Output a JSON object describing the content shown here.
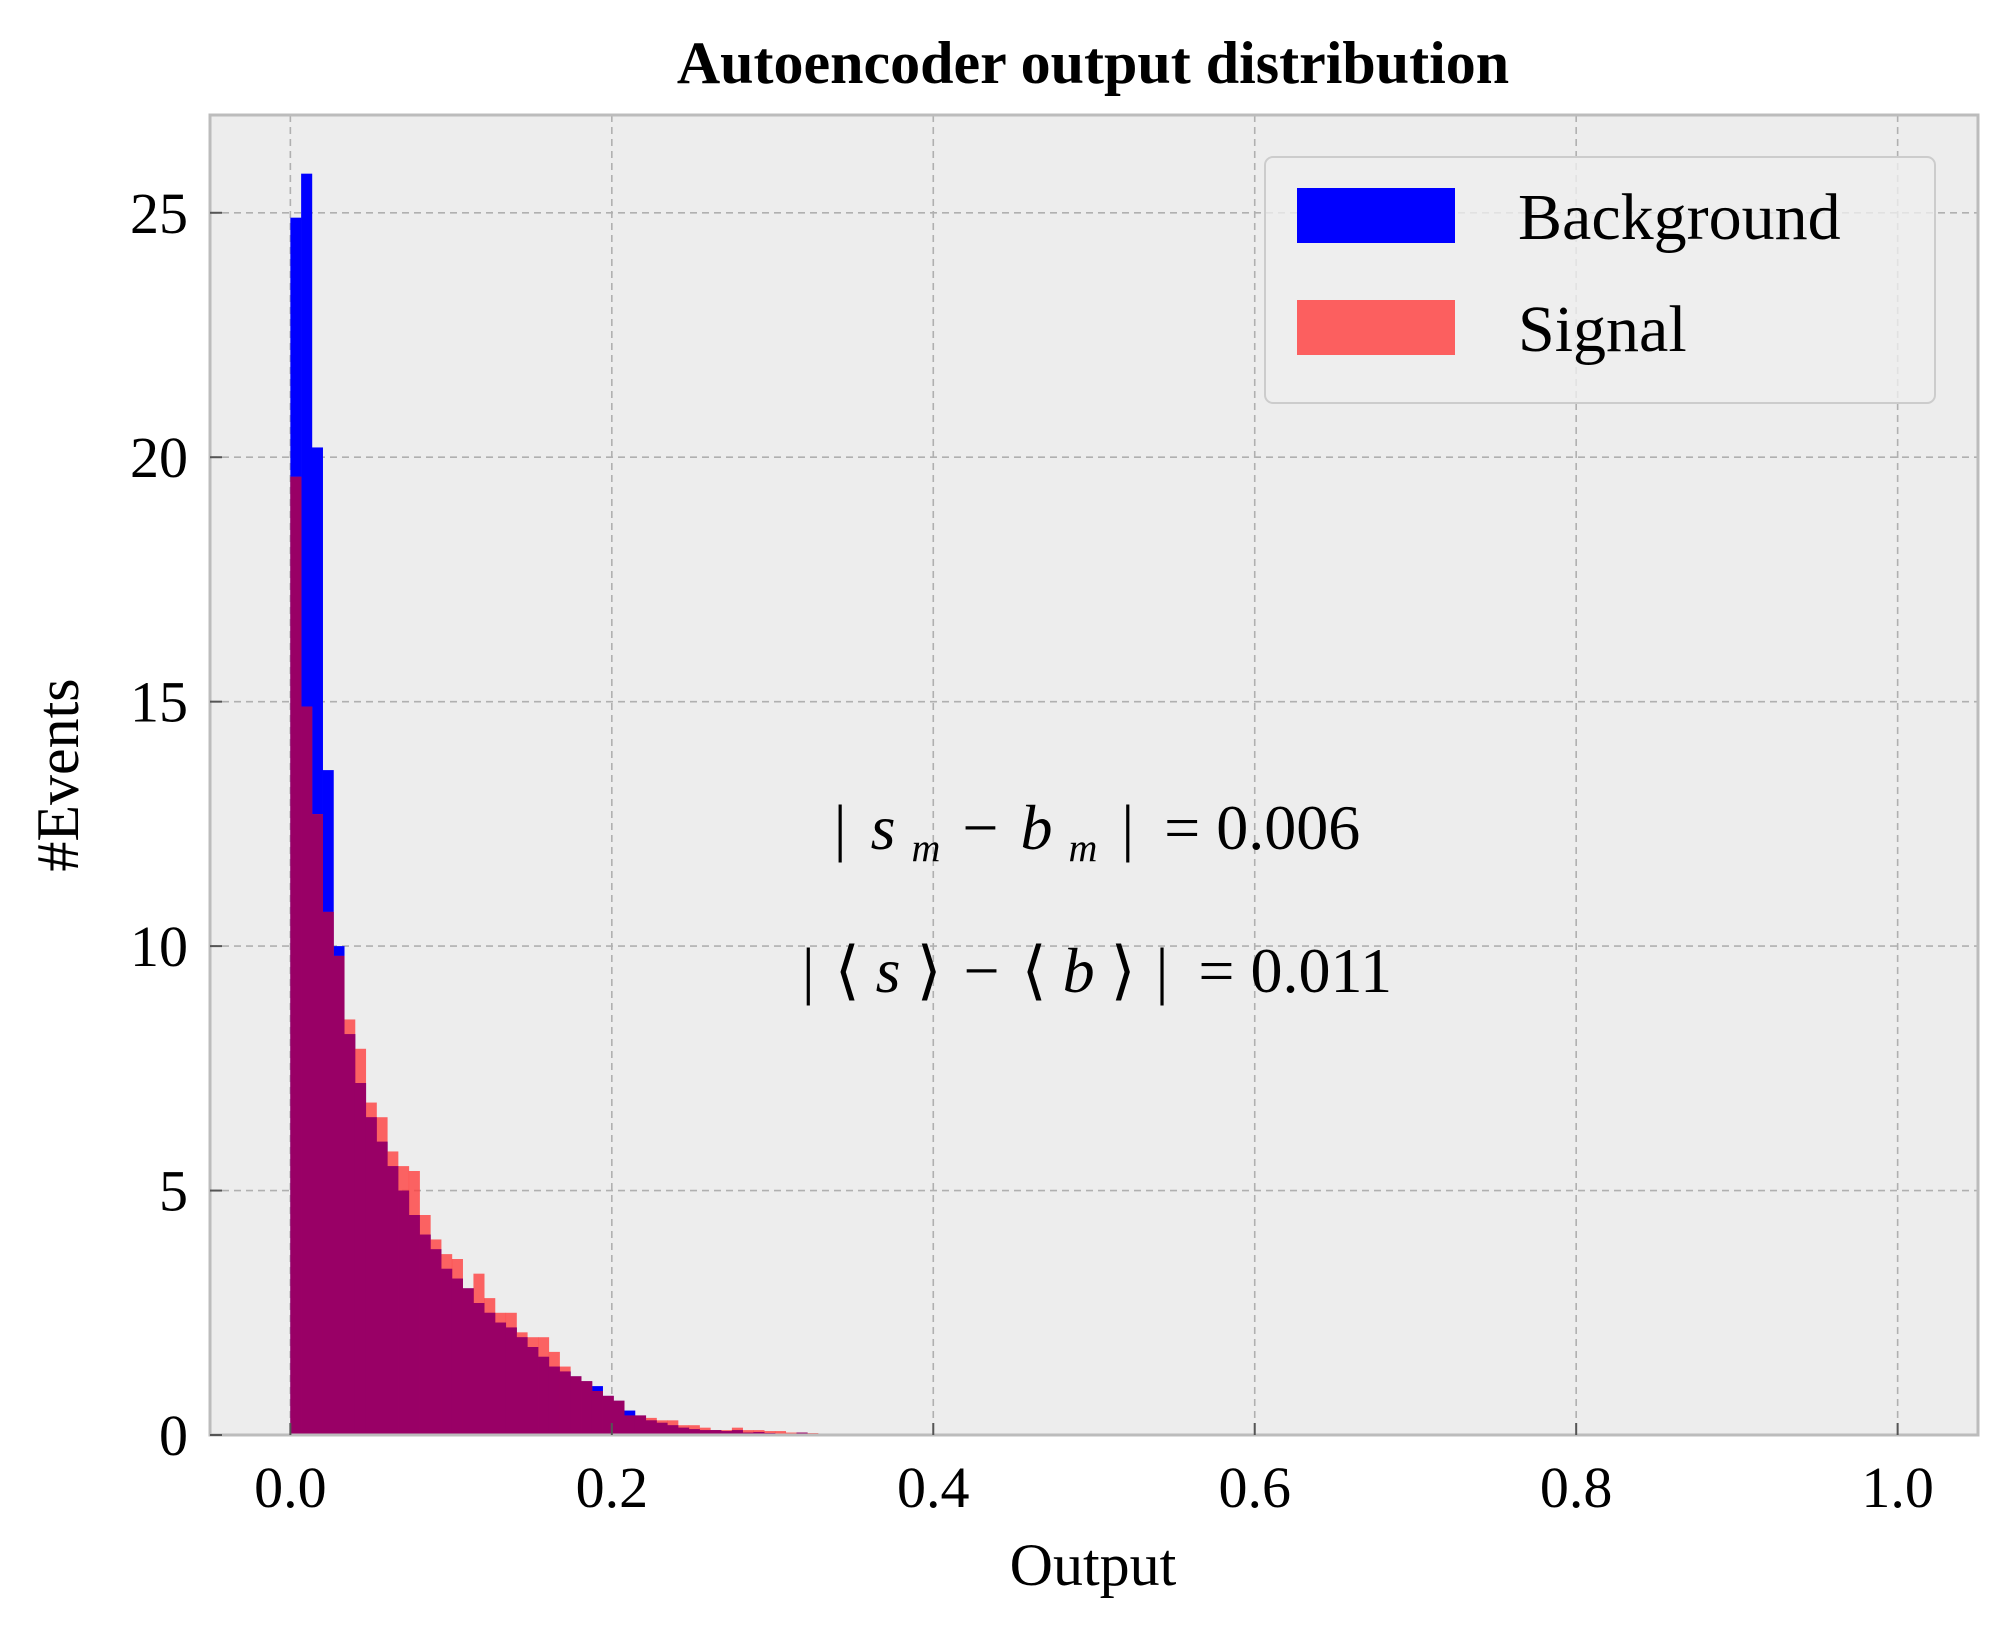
{
  "chart_data": {
    "type": "bar",
    "title": "Autoencoder output distribution",
    "xlabel": "Output",
    "ylabel": "#Events",
    "xlim": [
      -0.05,
      1.05
    ],
    "ylim": [
      0,
      27
    ],
    "xticks": [
      0.0,
      0.2,
      0.4,
      0.6,
      0.8,
      1.0
    ],
    "xtick_labels": [
      "0.0",
      "0.2",
      "0.4",
      "0.6",
      "0.8",
      "1.0"
    ],
    "yticks": [
      0,
      5,
      10,
      15,
      20,
      25
    ],
    "ytick_labels": [
      "0",
      "5",
      "10",
      "15",
      "20",
      "25"
    ],
    "grid": true,
    "legend_position": "top-right",
    "bin_width": 0.0067,
    "bin_start": 0.0,
    "series": [
      {
        "name": "Background",
        "color": "#0000ff",
        "values": [
          24.9,
          25.8,
          20.2,
          13.6,
          10.0,
          8.2,
          7.2,
          6.5,
          6.0,
          5.5,
          5.0,
          4.5,
          4.1,
          3.8,
          3.4,
          3.2,
          3.0,
          2.7,
          2.5,
          2.3,
          2.2,
          2.0,
          1.8,
          1.6,
          1.4,
          1.3,
          1.2,
          1.1,
          1.0,
          0.8,
          0.7,
          0.5,
          0.4,
          0.3,
          0.25,
          0.2,
          0.15,
          0.12,
          0.1,
          0.1,
          0.08,
          0.1,
          0.05,
          0.06,
          0.04,
          0.03,
          0.03,
          0.05,
          0.02,
          0.02,
          0.03,
          0.02,
          0.01,
          0.01,
          0.02,
          0.01,
          0.01
        ]
      },
      {
        "name": "Signal",
        "color": "#ff3b3b",
        "values": [
          19.6,
          14.9,
          12.7,
          10.7,
          9.8,
          8.5,
          7.9,
          6.8,
          6.5,
          5.8,
          5.5,
          5.4,
          4.5,
          4.0,
          3.7,
          3.6,
          3.0,
          3.3,
          2.8,
          2.5,
          2.5,
          2.1,
          2.0,
          2.0,
          1.7,
          1.4,
          1.2,
          1.1,
          0.9,
          0.8,
          0.7,
          0.4,
          0.4,
          0.35,
          0.3,
          0.3,
          0.2,
          0.2,
          0.15,
          0.1,
          0.1,
          0.15,
          0.1,
          0.1,
          0.08,
          0.08,
          0.05,
          0.05,
          0.04,
          0.03,
          0.02,
          0.02,
          0.01,
          0.01,
          0.01,
          0.0,
          0.0
        ]
      }
    ],
    "annotations": [
      {
        "text": "|s_m − b_m| = 0.006",
        "x": 0.5,
        "y": 12.4
      },
      {
        "text": "|⟨s⟩ − ⟨b⟩| = 0.011",
        "x": 0.5,
        "y": 9.4
      }
    ]
  },
  "annotation_parts": {
    "a1_bar1": "|",
    "a1_s": "s",
    "a1_sub1": "m",
    "a1_minus": "−",
    "a1_b": "b",
    "a1_sub2": "m",
    "a1_bar2": "|",
    "a1_value": "= 0.006",
    "a2_bar1": "|",
    "a2_l1": "⟨",
    "a2_s": "s",
    "a2_r1": "⟩",
    "a2_minus": "−",
    "a2_l2": "⟨",
    "a2_b": "b",
    "a2_r2": "⟩",
    "a2_bar2": "|",
    "a2_value": "= 0.011"
  },
  "colors": {
    "plot_background": "#ededed",
    "grid": "#b0b0b0",
    "spine": "#bcbcbc",
    "overlap": "#990066"
  }
}
